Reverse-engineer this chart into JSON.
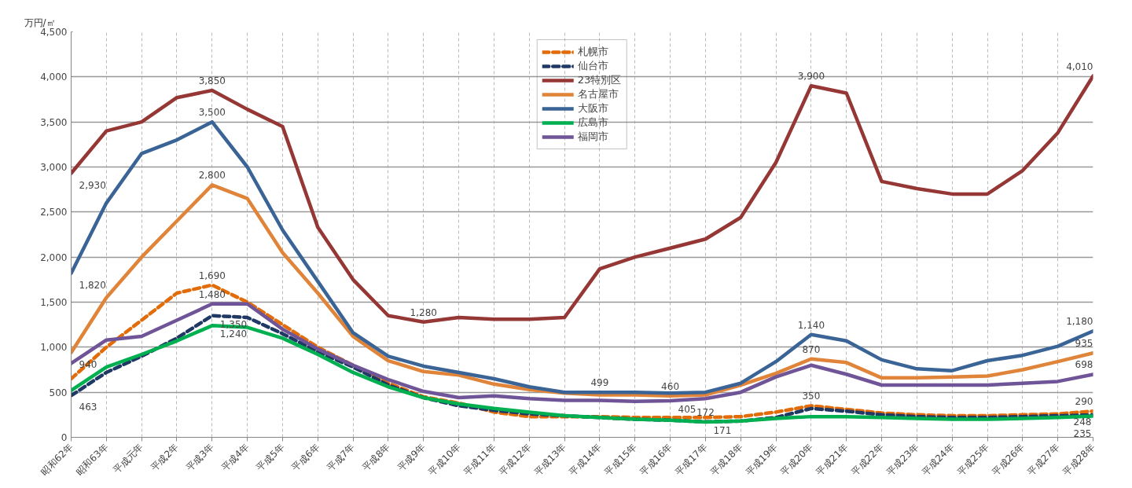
{
  "chart_data": {
    "type": "line",
    "ylabel": "万円/㎡",
    "categories": [
      "昭和62年",
      "昭和63年",
      "平成元年",
      "平成2年",
      "平成3年",
      "平成4年",
      "平成5年",
      "平成6年",
      "平成7年",
      "平成8年",
      "平成9年",
      "平成10年",
      "平成11年",
      "平成12年",
      "平成13年",
      "平成14年",
      "平成15年",
      "平成16年",
      "平成17年",
      "平成18年",
      "平成19年",
      "平成20年",
      "平成21年",
      "平成22年",
      "平成23年",
      "平成24年",
      "平成25年",
      "平成26年",
      "平成27年",
      "平成28年"
    ],
    "ylim": [
      0,
      4500
    ],
    "yticks": [
      0,
      {
        "value": 500,
        "label": "500"
      },
      {
        "value": 1000,
        "label": "1,000"
      },
      {
        "value": 1500,
        "label": "1,500"
      },
      {
        "value": 2000,
        "label": "2,000"
      },
      {
        "value": 2500,
        "label": "2,500"
      },
      {
        "value": 3000,
        "label": "3,000"
      },
      {
        "value": 3500,
        "label": "3,500"
      },
      {
        "value": 4000,
        "label": "4,000"
      },
      {
        "value": 4500,
        "label": "4,500"
      }
    ],
    "grid": true,
    "legend": "top",
    "marker": "none",
    "series": [
      {
        "name": "札幌市",
        "color": "#e36c0a",
        "line_style": "dashed",
        "values": [
          650,
          1000,
          1300,
          1600,
          1690,
          1500,
          1250,
          1000,
          800,
          600,
          450,
          380,
          280,
          230,
          230,
          230,
          220,
          220,
          220,
          230,
          280,
          350,
          310,
          270,
          250,
          240,
          240,
          250,
          260,
          290
        ],
        "value_labels": [
          null,
          null,
          null,
          null,
          "1,690",
          null,
          null,
          null,
          null,
          null,
          null,
          null,
          null,
          null,
          null,
          null,
          null,
          null,
          null,
          null,
          null,
          "350",
          null,
          null,
          null,
          null,
          null,
          null,
          null,
          "290"
        ]
      },
      {
        "name": "仙台市",
        "color": "#1f3864",
        "line_style": "dashed",
        "values": [
          463,
          720,
          900,
          1100,
          1350,
          1330,
          1150,
          950,
          780,
          580,
          440,
          350,
          300,
          260,
          240,
          220,
          200,
          190,
          172,
          180,
          220,
          320,
          290,
          250,
          230,
          220,
          220,
          230,
          240,
          248
        ],
        "value_labels": [
          "463",
          null,
          null,
          null,
          "1,350",
          null,
          null,
          null,
          null,
          null,
          null,
          null,
          null,
          null,
          null,
          null,
          null,
          null,
          "172",
          null,
          null,
          null,
          null,
          null,
          null,
          null,
          null,
          null,
          null,
          "248"
        ]
      },
      {
        "name": "23特別区",
        "color": "#953735",
        "line_style": "solid",
        "values": [
          2930,
          3400,
          3500,
          3770,
          3850,
          3640,
          3450,
          2330,
          1750,
          1350,
          1280,
          1330,
          1310,
          1310,
          1330,
          1870,
          2000,
          2100,
          2200,
          2440,
          3050,
          3900,
          3820,
          2840,
          2760,
          2700,
          2700,
          2960,
          3380,
          4010
        ],
        "value_labels": [
          "2,930",
          null,
          null,
          null,
          "3,850",
          null,
          null,
          null,
          null,
          null,
          "1,280",
          null,
          null,
          null,
          null,
          null,
          null,
          null,
          null,
          null,
          null,
          "3,900",
          null,
          null,
          null,
          null,
          null,
          null,
          null,
          "4,010"
        ]
      },
      {
        "name": "名古屋市",
        "color": "#e0843a",
        "line_style": "solid",
        "values": [
          940,
          1550,
          2000,
          2400,
          2800,
          2650,
          2050,
          1600,
          1120,
          850,
          730,
          690,
          590,
          530,
          490,
          470,
          470,
          460,
          470,
          580,
          710,
          870,
          830,
          660,
          660,
          670,
          680,
          750,
          840,
          935
        ],
        "value_labels": [
          "940",
          null,
          null,
          null,
          "2,800",
          null,
          null,
          null,
          null,
          null,
          null,
          null,
          null,
          null,
          null,
          null,
          null,
          "460",
          null,
          null,
          null,
          "870",
          null,
          null,
          null,
          null,
          null,
          null,
          null,
          "935"
        ]
      },
      {
        "name": "大阪市",
        "color": "#3b6496",
        "line_style": "solid",
        "values": [
          1820,
          2600,
          3150,
          3300,
          3500,
          3000,
          2300,
          1730,
          1160,
          900,
          790,
          720,
          650,
          560,
          500,
          499,
          500,
          490,
          500,
          600,
          840,
          1140,
          1070,
          860,
          760,
          740,
          850,
          910,
          1010,
          1180
        ],
        "value_labels": [
          "1,820",
          null,
          null,
          null,
          "3,500",
          null,
          null,
          null,
          null,
          null,
          null,
          null,
          null,
          null,
          null,
          "499",
          null,
          null,
          null,
          null,
          null,
          "1,140",
          null,
          null,
          null,
          null,
          null,
          null,
          null,
          "1,180"
        ]
      },
      {
        "name": "広島市",
        "color": "#00b050",
        "line_style": "solid",
        "values": [
          520,
          780,
          920,
          1070,
          1240,
          1220,
          1100,
          920,
          720,
          560,
          440,
          370,
          320,
          280,
          240,
          220,
          200,
          190,
          171,
          180,
          210,
          230,
          230,
          220,
          210,
          200,
          200,
          210,
          220,
          235
        ],
        "value_labels": [
          null,
          null,
          null,
          null,
          "1,240",
          null,
          null,
          null,
          null,
          null,
          null,
          null,
          null,
          null,
          null,
          null,
          null,
          null,
          "171",
          null,
          null,
          null,
          null,
          null,
          null,
          null,
          null,
          null,
          null,
          "235"
        ]
      },
      {
        "name": "福岡市",
        "color": "#6f5597",
        "line_style": "solid",
        "values": [
          820,
          1080,
          1120,
          1300,
          1480,
          1480,
          1200,
          980,
          800,
          640,
          510,
          440,
          460,
          430,
          410,
          410,
          400,
          405,
          430,
          500,
          670,
          800,
          700,
          580,
          580,
          580,
          580,
          600,
          620,
          698
        ],
        "value_labels": [
          null,
          null,
          null,
          null,
          "1,480",
          null,
          null,
          null,
          null,
          null,
          null,
          null,
          null,
          null,
          null,
          null,
          null,
          "405",
          null,
          null,
          null,
          null,
          null,
          null,
          null,
          null,
          null,
          null,
          null,
          "698"
        ]
      }
    ]
  }
}
